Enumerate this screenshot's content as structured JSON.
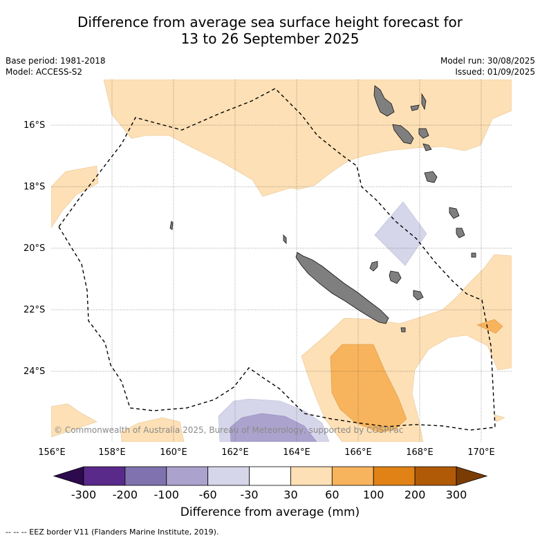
{
  "title_line1": "Difference from average sea surface height forecast for",
  "title_line2": "13 to 26 September 2025",
  "base_period": "Base period: 1981-2018",
  "model": "Model: ACCESS-S2",
  "model_run": "Model run: 30/08/2025",
  "issued": "Issued: 01/09/2025",
  "lat_labels": [
    "16°S",
    "18°S",
    "20°S",
    "22°S",
    "24°S"
  ],
  "lon_labels": [
    "156°E",
    "158°E",
    "160°E",
    "162°E",
    "164°E",
    "166°E",
    "168°E",
    "170°E"
  ],
  "colorbar": {
    "ticks": [
      "-300",
      "-200",
      "-100",
      "-60",
      "-30",
      "30",
      "60",
      "100",
      "200",
      "300"
    ],
    "colors": [
      "#2d0a4e",
      "#5a2a8a",
      "#7f72ae",
      "#aba3cd",
      "#d6d6ea",
      "#ffffff",
      "#fde0b5",
      "#f8b45c",
      "#e08216",
      "#b05a08",
      "#7a3c04"
    ],
    "label": "Difference from average (mm)"
  },
  "copyright": "© Commonwealth of Australia 2025, Bureau of Meteorology, supported by COSPPac",
  "footer": "--  --  -- EEZ border V11 (Flanders Marine Institute, 2019)."
}
